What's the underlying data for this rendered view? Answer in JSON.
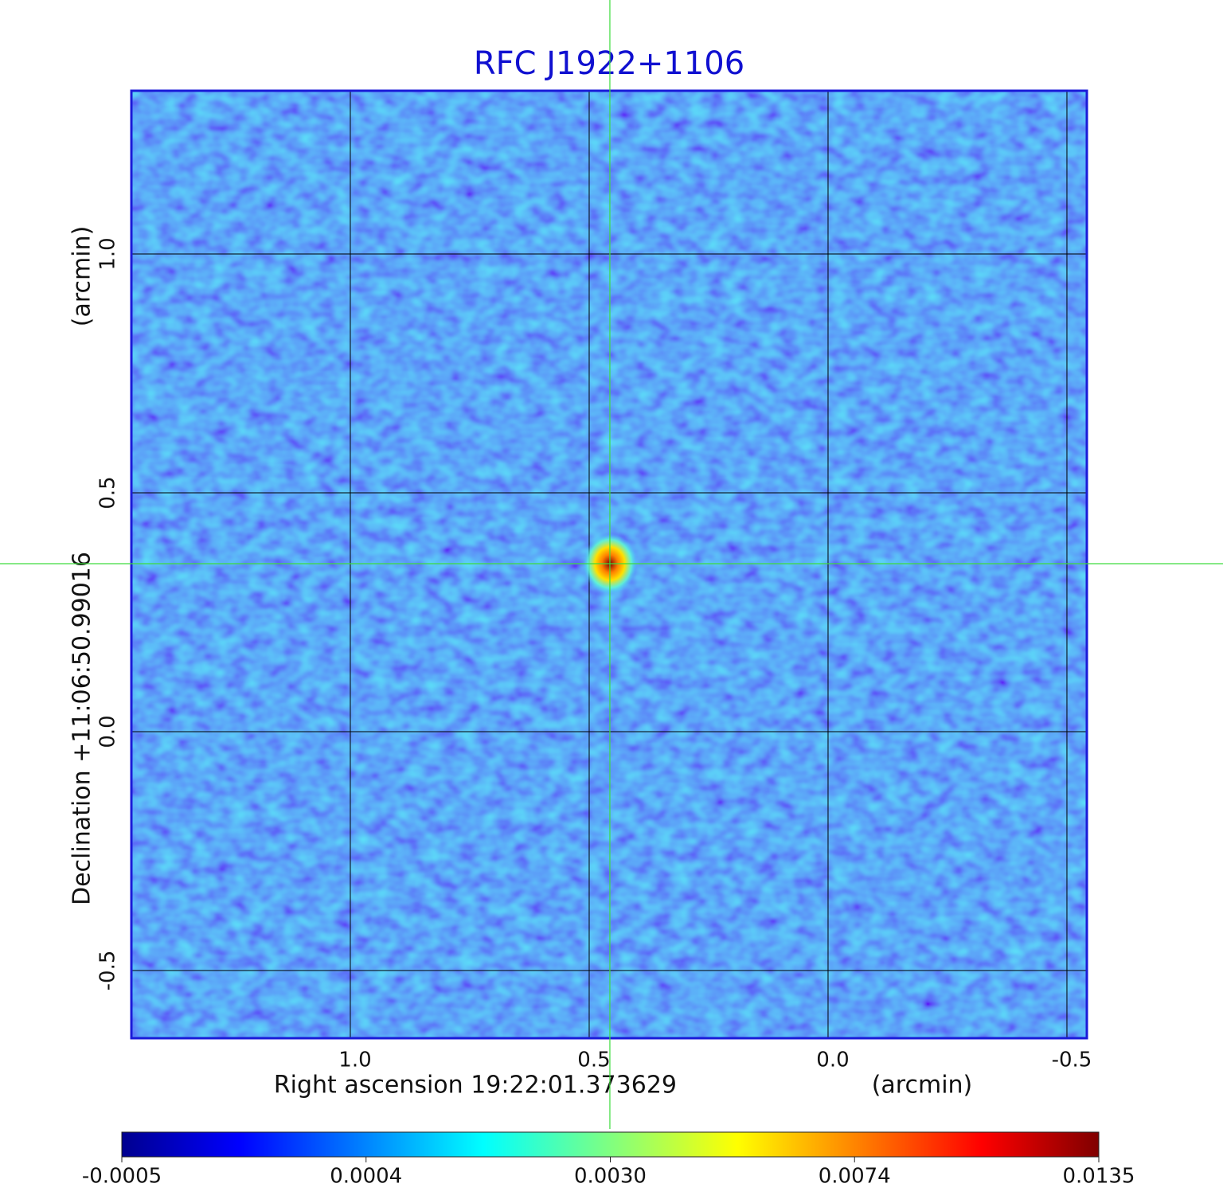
{
  "chart_data": {
    "type": "image",
    "title": "RFC J1922+1106",
    "x_label": "Right ascension  19:22:01.373629",
    "x_unit": "(arcmin)",
    "y_label": "Declination  +11:06:50.99016",
    "y_unit": "(arcmin)",
    "xlim": [
      1.4583,
      -0.5417
    ],
    "ylim": [
      -0.6417,
      1.3417
    ],
    "xticks": [
      {
        "value": 1.0,
        "label": "1.0"
      },
      0.5,
      {
        "value": 0.0,
        "label": "0.0"
      },
      -0.5
    ],
    "yticks": [
      -0.5,
      {
        "value": 0.0,
        "label": "0.0"
      },
      0.5,
      {
        "value": 1.0,
        "label": "1.0"
      }
    ],
    "grid": true,
    "crosshair": {
      "x": 0.4567,
      "y": 0.3517
    },
    "source": {
      "x": 0.4567,
      "y": 0.3517,
      "peak": 0.0135
    },
    "colorbar": {
      "colormap": "jet",
      "lim": [
        -0.0005,
        0.0135
      ],
      "ticks": [
        -0.0005,
        0.0004,
        {
          "value": 0.003,
          "label": "0.0030"
        },
        0.0074,
        0.0135
      ]
    }
  }
}
